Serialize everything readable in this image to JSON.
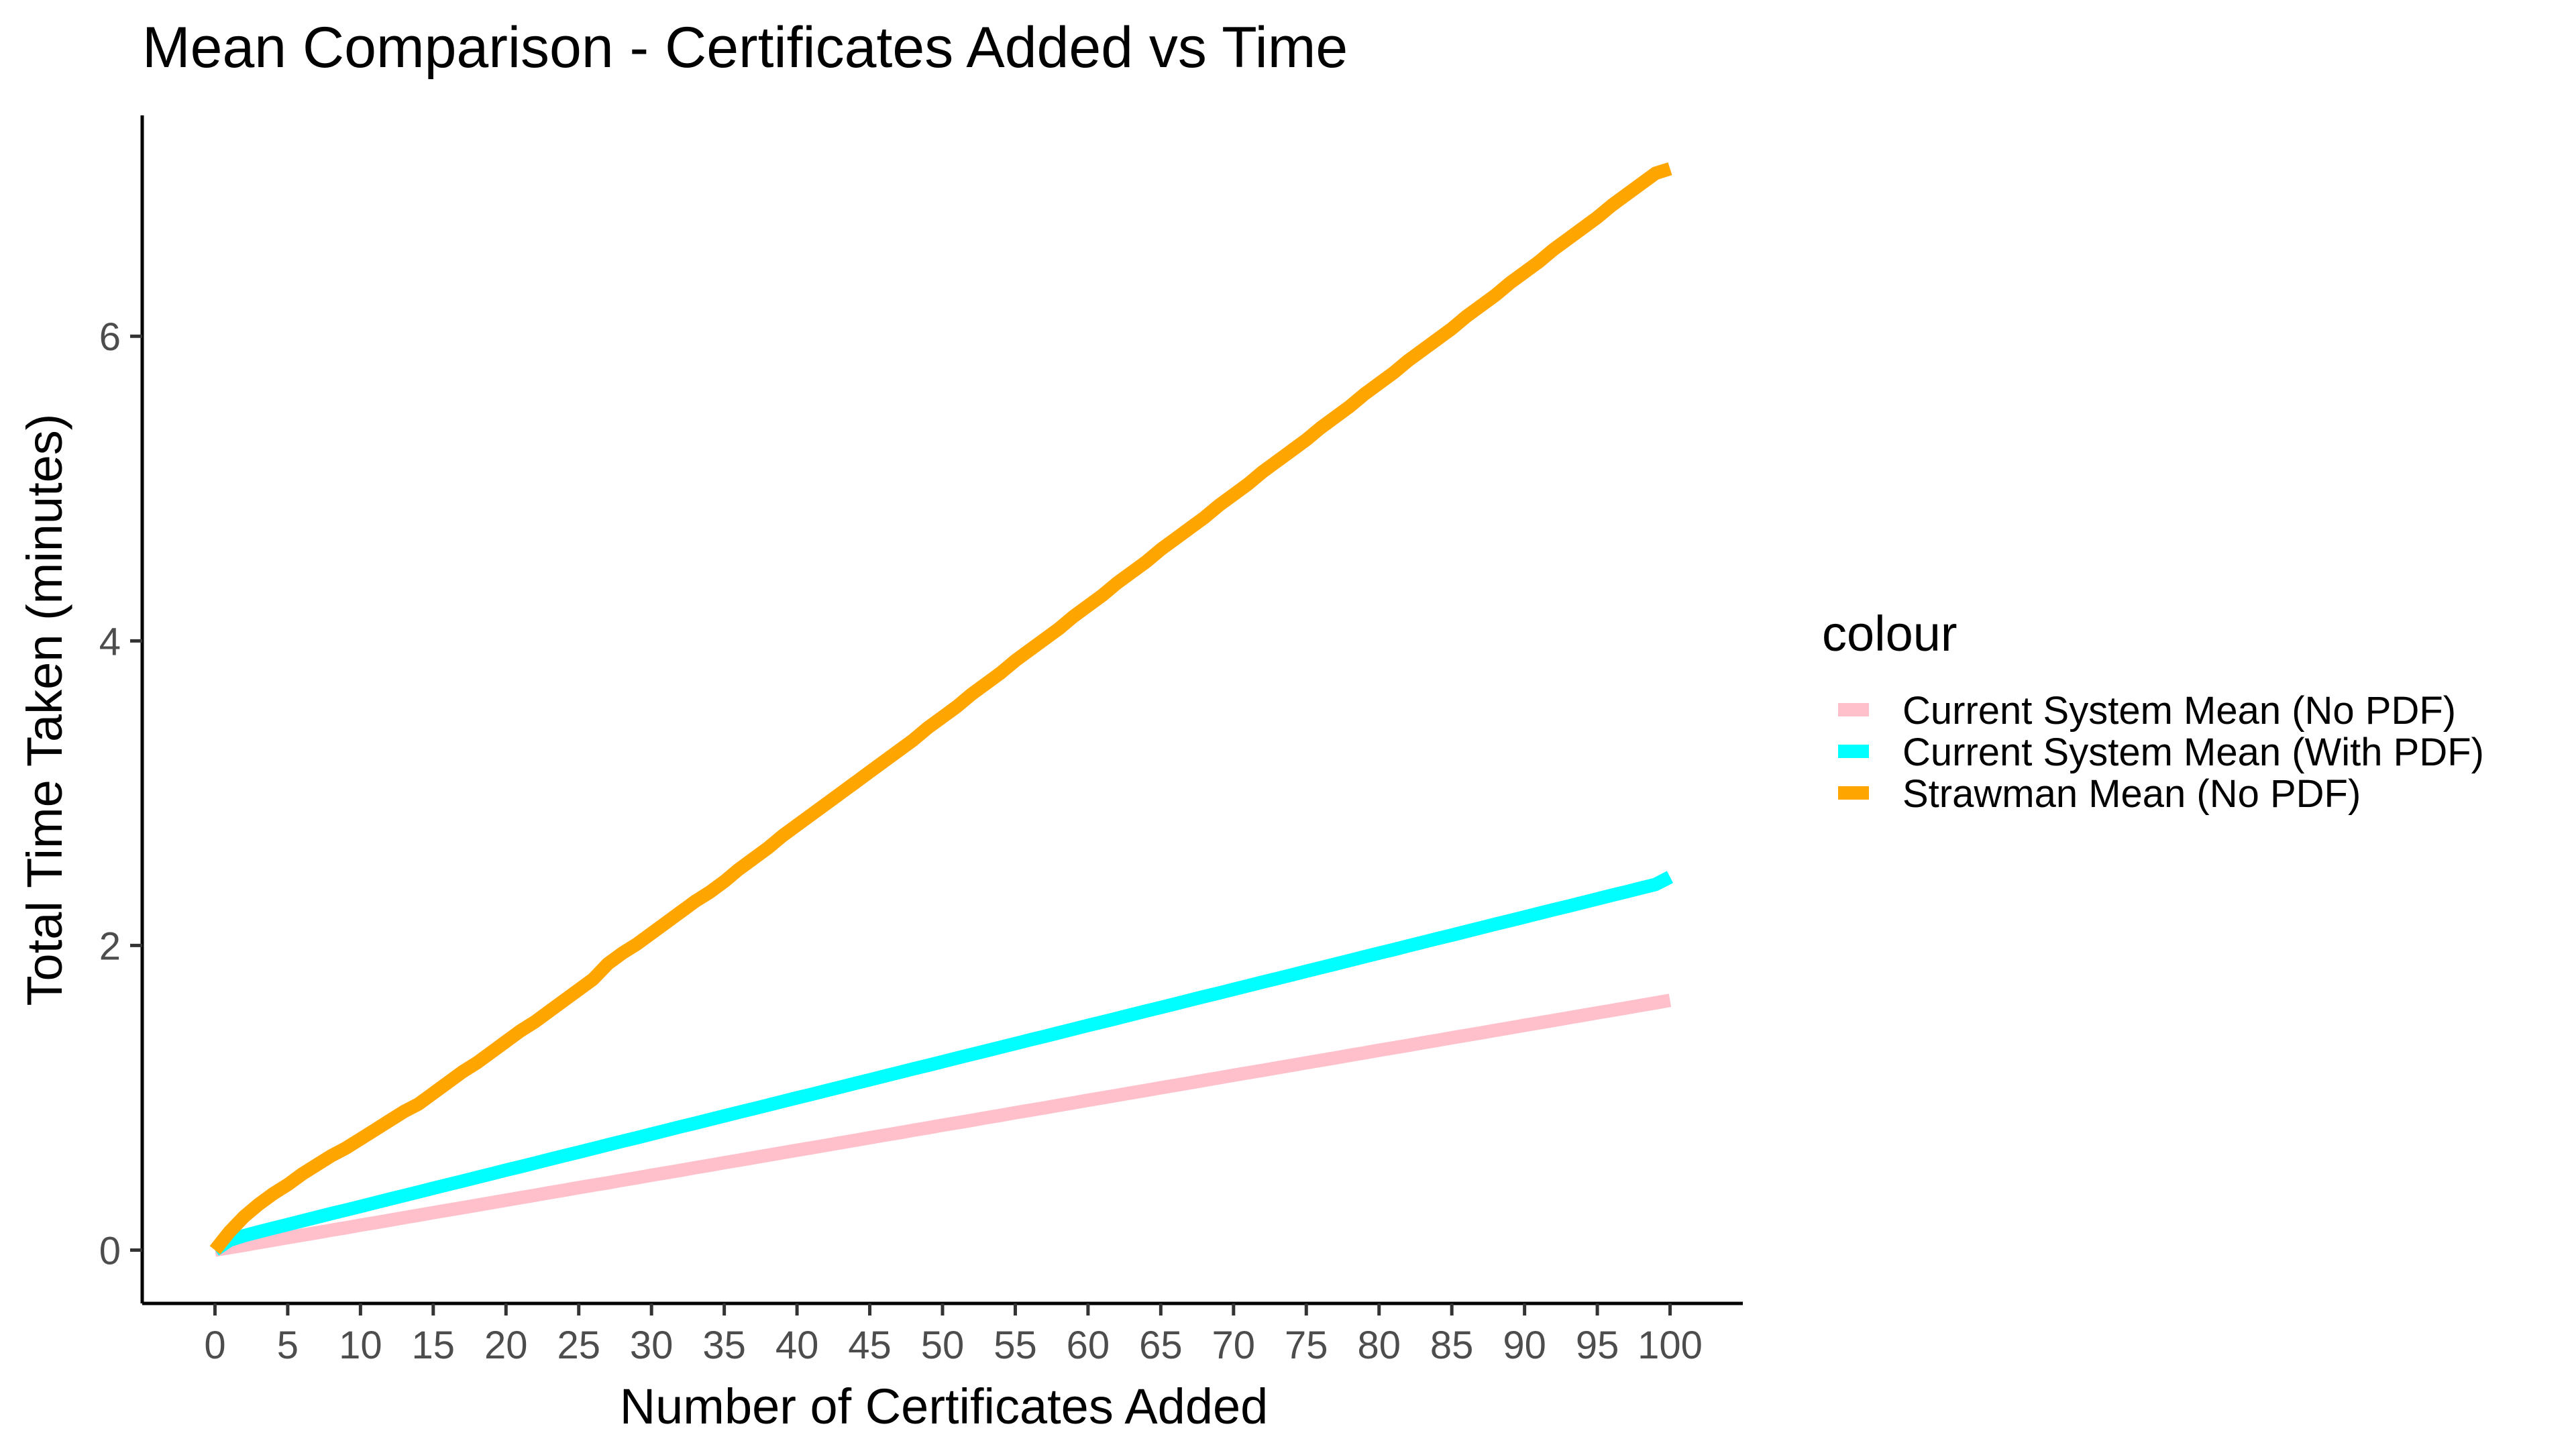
{
  "chart_data": {
    "type": "line",
    "title": "Mean Comparison - Certificates Added vs Time",
    "xlabel": "Number of Certificates Added",
    "ylabel": "Total Time Taken (minutes)",
    "xlim": [
      -5,
      105
    ],
    "ylim": [
      -0.35,
      7.45
    ],
    "x_ticks": [
      0,
      5,
      10,
      15,
      20,
      25,
      30,
      35,
      40,
      45,
      50,
      55,
      60,
      65,
      70,
      75,
      80,
      85,
      90,
      95,
      100
    ],
    "y_ticks": [
      0,
      2,
      4,
      6
    ],
    "grid": false,
    "legend": {
      "title": "colour",
      "position": "right"
    },
    "x": [
      0,
      1,
      2,
      3,
      4,
      5,
      6,
      7,
      8,
      9,
      10,
      11,
      12,
      13,
      14,
      15,
      16,
      17,
      18,
      19,
      20,
      21,
      22,
      23,
      24,
      25,
      26,
      27,
      28,
      29,
      30,
      31,
      32,
      33,
      34,
      35,
      36,
      37,
      38,
      39,
      40,
      41,
      42,
      43,
      44,
      45,
      46,
      47,
      48,
      49,
      50,
      51,
      52,
      53,
      54,
      55,
      56,
      57,
      58,
      59,
      60,
      61,
      62,
      63,
      64,
      65,
      66,
      67,
      68,
      69,
      70,
      71,
      72,
      73,
      74,
      75,
      76,
      77,
      78,
      79,
      80,
      81,
      82,
      83,
      84,
      85,
      86,
      87,
      88,
      89,
      90,
      91,
      92,
      93,
      94,
      95,
      96,
      97,
      98,
      99,
      100
    ],
    "series": [
      {
        "name": "Current System Mean (No PDF)",
        "color": "#FFC0CB",
        "values": [
          0.0,
          0.016,
          0.032,
          0.049,
          0.065,
          0.082,
          0.098,
          0.114,
          0.131,
          0.147,
          0.164,
          0.18,
          0.196,
          0.213,
          0.229,
          0.246,
          0.262,
          0.278,
          0.295,
          0.311,
          0.328,
          0.344,
          0.36,
          0.377,
          0.393,
          0.41,
          0.426,
          0.442,
          0.459,
          0.475,
          0.492,
          0.508,
          0.524,
          0.541,
          0.557,
          0.574,
          0.59,
          0.606,
          0.623,
          0.639,
          0.656,
          0.672,
          0.688,
          0.705,
          0.721,
          0.738,
          0.754,
          0.77,
          0.787,
          0.803,
          0.82,
          0.836,
          0.852,
          0.869,
          0.885,
          0.902,
          0.918,
          0.934,
          0.951,
          0.967,
          0.984,
          1.0,
          1.016,
          1.033,
          1.049,
          1.066,
          1.082,
          1.098,
          1.115,
          1.131,
          1.148,
          1.164,
          1.18,
          1.197,
          1.213,
          1.23,
          1.246,
          1.262,
          1.279,
          1.295,
          1.312,
          1.328,
          1.344,
          1.361,
          1.377,
          1.394,
          1.41,
          1.426,
          1.443,
          1.459,
          1.476,
          1.492,
          1.508,
          1.525,
          1.541,
          1.558,
          1.574,
          1.59,
          1.607,
          1.623,
          1.64
        ]
      },
      {
        "name": "Current System Mean (With PDF)",
        "color": "#00FFFF",
        "values": [
          0.0,
          0.065,
          0.095,
          0.12,
          0.144,
          0.168,
          0.192,
          0.216,
          0.24,
          0.263,
          0.287,
          0.311,
          0.335,
          0.358,
          0.382,
          0.406,
          0.43,
          0.453,
          0.477,
          0.501,
          0.525,
          0.548,
          0.572,
          0.596,
          0.62,
          0.643,
          0.667,
          0.691,
          0.715,
          0.738,
          0.762,
          0.786,
          0.81,
          0.833,
          0.857,
          0.881,
          0.905,
          0.928,
          0.952,
          0.976,
          1.0,
          1.023,
          1.047,
          1.071,
          1.095,
          1.118,
          1.142,
          1.166,
          1.19,
          1.213,
          1.237,
          1.261,
          1.285,
          1.308,
          1.332,
          1.356,
          1.38,
          1.403,
          1.427,
          1.451,
          1.475,
          1.498,
          1.522,
          1.546,
          1.57,
          1.593,
          1.617,
          1.641,
          1.665,
          1.688,
          1.712,
          1.736,
          1.76,
          1.783,
          1.807,
          1.831,
          1.855,
          1.878,
          1.902,
          1.926,
          1.95,
          1.973,
          1.997,
          2.021,
          2.045,
          2.068,
          2.092,
          2.116,
          2.14,
          2.163,
          2.187,
          2.211,
          2.235,
          2.258,
          2.282,
          2.306,
          2.33,
          2.353,
          2.377,
          2.401,
          2.45
        ]
      },
      {
        "name": "Strawman Mean (No PDF)",
        "color": "#FFA500",
        "values": [
          0.0,
          0.12,
          0.22,
          0.3,
          0.37,
          0.43,
          0.5,
          0.56,
          0.62,
          0.67,
          0.73,
          0.79,
          0.85,
          0.91,
          0.96,
          1.03,
          1.1,
          1.17,
          1.23,
          1.3,
          1.37,
          1.44,
          1.5,
          1.57,
          1.64,
          1.71,
          1.78,
          1.88,
          1.95,
          2.01,
          2.08,
          2.15,
          2.22,
          2.29,
          2.35,
          2.42,
          2.5,
          2.57,
          2.64,
          2.72,
          2.79,
          2.86,
          2.93,
          3.0,
          3.07,
          3.14,
          3.21,
          3.28,
          3.35,
          3.43,
          3.5,
          3.57,
          3.65,
          3.72,
          3.79,
          3.87,
          3.94,
          4.01,
          4.08,
          4.16,
          4.23,
          4.3,
          4.38,
          4.45,
          4.52,
          4.6,
          4.67,
          4.74,
          4.81,
          4.89,
          4.96,
          5.03,
          5.11,
          5.18,
          5.25,
          5.32,
          5.4,
          5.47,
          5.54,
          5.62,
          5.69,
          5.76,
          5.84,
          5.91,
          5.98,
          6.05,
          6.13,
          6.2,
          6.27,
          6.35,
          6.42,
          6.49,
          6.57,
          6.64,
          6.71,
          6.78,
          6.86,
          6.93,
          7.0,
          7.07,
          7.1
        ]
      }
    ]
  }
}
